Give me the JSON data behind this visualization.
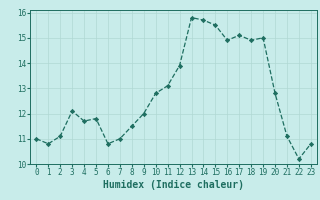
{
  "x": [
    0,
    1,
    2,
    3,
    4,
    5,
    6,
    7,
    8,
    9,
    10,
    11,
    12,
    13,
    14,
    15,
    16,
    17,
    18,
    19,
    20,
    21,
    22,
    23
  ],
  "y": [
    11.0,
    10.8,
    11.1,
    12.1,
    11.7,
    11.8,
    10.8,
    11.0,
    11.5,
    12.0,
    12.8,
    13.1,
    13.9,
    15.8,
    15.7,
    15.5,
    14.9,
    15.1,
    14.9,
    15.0,
    12.8,
    11.1,
    10.2,
    10.8
  ],
  "xlabel": "Humidex (Indice chaleur)",
  "bg_color": "#c8ecea",
  "grid_color": "#b0d8d4",
  "line_color": "#1e6e60",
  "xlim": [
    -0.5,
    23.5
  ],
  "ylim": [
    10,
    16.1
  ],
  "yticks": [
    10,
    11,
    12,
    13,
    14,
    15,
    16
  ],
  "xticks": [
    0,
    1,
    2,
    3,
    4,
    5,
    6,
    7,
    8,
    9,
    10,
    11,
    12,
    13,
    14,
    15,
    16,
    17,
    18,
    19,
    20,
    21,
    22,
    23
  ],
  "tick_fontsize": 5.5,
  "xlabel_fontsize": 7.0,
  "linewidth": 0.9,
  "markersize": 2.2
}
